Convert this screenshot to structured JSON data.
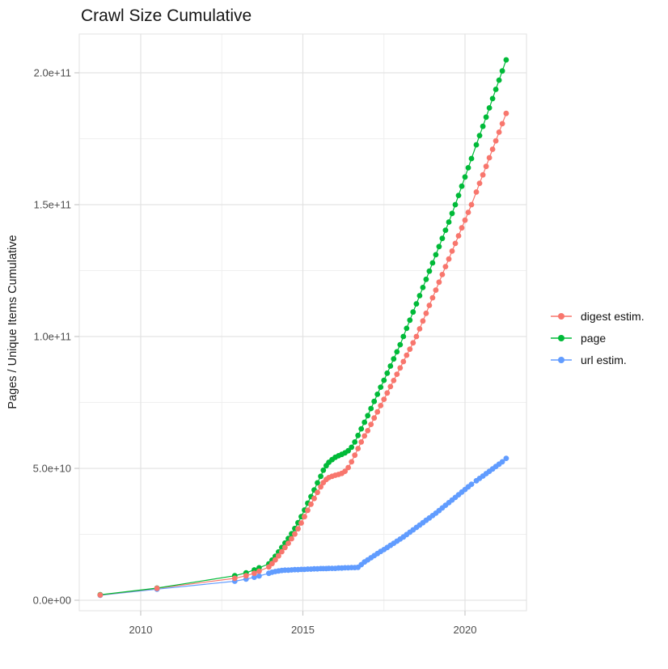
{
  "title": "Crawl Size Cumulative",
  "colors": {
    "background": "#ffffff",
    "grid_major": "#e3e3e3",
    "grid_minor": "#efefef",
    "panel_border": "#e3e3e3",
    "tick_mark": "#c9c9c9",
    "tick_label": "#4d4d4d",
    "title_text": "#161616"
  },
  "chart_data": {
    "type": "scatter",
    "title": "Crawl Size Cumulative",
    "xlabel": "",
    "ylabel": "Pages / Unique Items Cumulative",
    "grid": true,
    "legend_position": "right",
    "value_unit": "count (stored values are billions, i.e. value x 1e9)",
    "xlim": [
      2008.1,
      2021.9
    ],
    "ylim_e9": [
      -4,
      214.5
    ],
    "x_ticks": [
      {
        "value": 2010,
        "label": "2010"
      },
      {
        "value": 2015,
        "label": "2015"
      },
      {
        "value": 2020,
        "label": "2020"
      }
    ],
    "x_minor": [
      2012.5,
      2017.5,
      2021.9
    ],
    "y_ticks": [
      {
        "value_e9": 0,
        "label": "0.0e+00"
      },
      {
        "value_e9": 50,
        "label": "5.0e+10"
      },
      {
        "value_e9": 100,
        "label": "1.0e+11"
      },
      {
        "value_e9": 150,
        "label": "1.5e+11"
      },
      {
        "value_e9": 200,
        "label": "2.0e+11"
      }
    ],
    "y_minor_e9": [
      25,
      75,
      125,
      175
    ],
    "x_years": [
      2008.75,
      2010.5,
      2012.9,
      2013.25,
      2013.5,
      2013.65,
      2013.95,
      2014.05,
      2014.15,
      2014.25,
      2014.35,
      2014.45,
      2014.55,
      2014.65,
      2014.75,
      2014.85,
      2014.95,
      2015.05,
      2015.15,
      2015.25,
      2015.35,
      2015.45,
      2015.55,
      2015.63,
      2015.72,
      2015.8,
      2015.9,
      2016.0,
      2016.1,
      2016.2,
      2016.3,
      2016.4,
      2016.5,
      2016.6,
      2016.7,
      2016.8,
      2016.9,
      2017.0,
      2017.1,
      2017.2,
      2017.3,
      2017.4,
      2017.5,
      2017.6,
      2017.7,
      2017.8,
      2017.9,
      2018.0,
      2018.1,
      2018.2,
      2018.3,
      2018.4,
      2018.5,
      2018.6,
      2018.7,
      2018.8,
      2018.9,
      2019.0,
      2019.1,
      2019.2,
      2019.3,
      2019.4,
      2019.5,
      2019.6,
      2019.7,
      2019.8,
      2019.9,
      2020.0,
      2020.1,
      2020.2,
      2020.35,
      2020.45,
      2020.55,
      2020.65,
      2020.75,
      2020.85,
      2020.95,
      2021.05,
      2021.15,
      2021.27
    ],
    "series": [
      {
        "name": "digest estim.",
        "color": "#F8766D",
        "values_e9": [
          2.0,
          4.5,
          8.3,
          9.3,
          10.2,
          11.0,
          12.6,
          13.9,
          15.3,
          16.8,
          18.4,
          20.0,
          21.6,
          23.3,
          25.1,
          27.1,
          29.3,
          31.7,
          34.1,
          36.4,
          38.6,
          40.9,
          43.0,
          44.6,
          45.8,
          46.5,
          47.0,
          47.4,
          47.7,
          48.1,
          48.9,
          50.3,
          52.5,
          55.0,
          57.5,
          60.0,
          62.3,
          64.3,
          66.7,
          69.1,
          71.4,
          73.8,
          76.2,
          78.6,
          81.0,
          83.3,
          85.7,
          88.1,
          90.5,
          92.9,
          95.2,
          97.6,
          100.0,
          102.9,
          105.9,
          108.8,
          111.8,
          114.7,
          117.6,
          120.6,
          123.5,
          126.5,
          129.4,
          132.4,
          135.3,
          138.2,
          141.2,
          144.1,
          147.1,
          150.0,
          154.8,
          158.1,
          161.3,
          164.5,
          167.8,
          171.0,
          174.2,
          177.5,
          180.7,
          184.6
        ]
      },
      {
        "name": "page",
        "color": "#00BA38",
        "values_e9": [
          2.1,
          4.6,
          9.3,
          10.4,
          11.5,
          12.3,
          13.8,
          15.2,
          16.7,
          18.3,
          20.0,
          21.7,
          23.4,
          25.2,
          27.2,
          29.4,
          31.7,
          34.2,
          36.8,
          39.3,
          41.8,
          44.5,
          47.0,
          49.3,
          51.0,
          52.3,
          53.3,
          54.2,
          54.8,
          55.3,
          55.9,
          56.7,
          58.0,
          60.0,
          62.5,
          65.0,
          67.5,
          70.0,
          72.7,
          75.4,
          78.1,
          80.8,
          83.4,
          86.1,
          88.8,
          91.5,
          94.2,
          96.9,
          100.0,
          103.1,
          106.2,
          109.3,
          112.4,
          115.5,
          118.6,
          121.7,
          124.8,
          127.9,
          131.0,
          134.1,
          137.2,
          140.3,
          143.4,
          146.7,
          150.0,
          153.5,
          157.0,
          160.5,
          164.0,
          167.5,
          172.7,
          176.2,
          179.7,
          183.2,
          186.7,
          190.2,
          193.7,
          197.2,
          200.7,
          204.9
        ]
      },
      {
        "name": "url estim.",
        "color": "#619CFF",
        "values_e9": [
          1.9,
          4.2,
          7.2,
          8.0,
          8.7,
          9.2,
          10.2,
          10.6,
          10.9,
          11.1,
          11.3,
          11.4,
          11.4,
          11.5,
          11.6,
          11.6,
          11.7,
          11.7,
          11.8,
          11.8,
          11.9,
          11.9,
          12.0,
          12.0,
          12.0,
          12.1,
          12.1,
          12.1,
          12.2,
          12.2,
          12.3,
          12.3,
          12.4,
          12.4,
          12.5,
          13.5,
          14.5,
          15.3,
          16.1,
          16.9,
          17.7,
          18.5,
          19.2,
          20.0,
          20.8,
          21.6,
          22.4,
          23.2,
          24.0,
          24.9,
          25.8,
          26.7,
          27.6,
          28.5,
          29.4,
          30.3,
          31.2,
          32.1,
          33.0,
          34.0,
          35.0,
          36.0,
          37.0,
          38.0,
          39.0,
          40.0,
          41.0,
          42.0,
          43.0,
          44.0,
          45.3,
          46.2,
          47.1,
          48.0,
          48.9,
          49.8,
          50.7,
          51.6,
          52.5,
          53.8
        ]
      }
    ]
  }
}
